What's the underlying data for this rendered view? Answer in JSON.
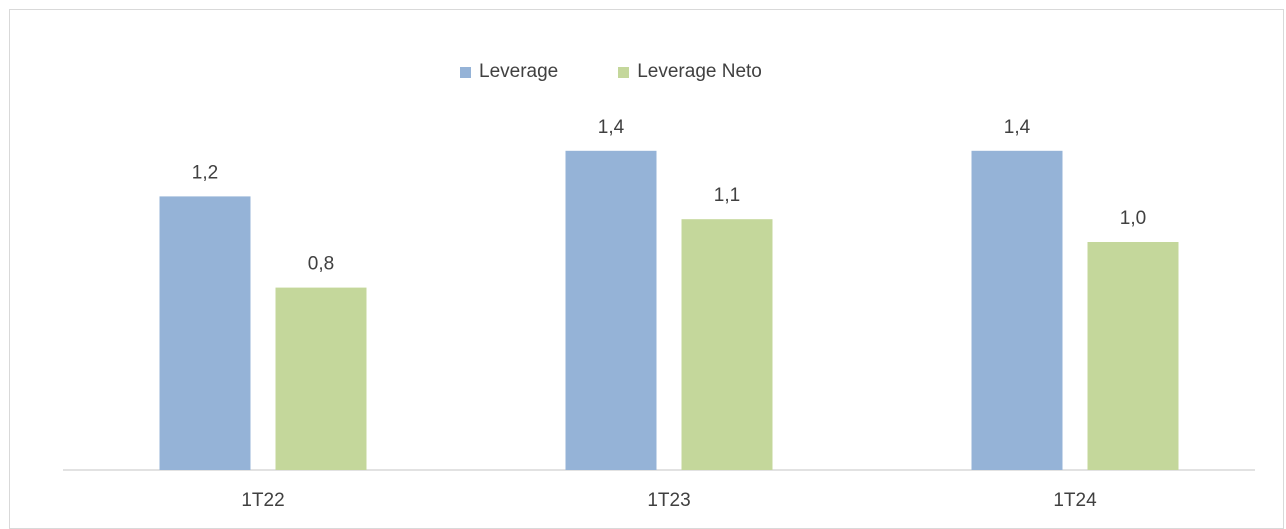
{
  "chart_data": {
    "type": "bar",
    "categories": [
      "1T22",
      "1T23",
      "1T24"
    ],
    "series": [
      {
        "name": "Leverage",
        "values": [
          1.2,
          1.4,
          1.4
        ],
        "labels": [
          "1,2",
          "1,4",
          "1,4"
        ],
        "color": "#95b3d7"
      },
      {
        "name": "Leverage Neto",
        "values": [
          0.8,
          1.1,
          1.0
        ],
        "labels": [
          "0,8",
          "1,1",
          "1,0"
        ],
        "color": "#c4d79b"
      }
    ],
    "title": "",
    "xlabel": "",
    "ylabel": "",
    "ylim": [
      0,
      1.6
    ],
    "grid": false,
    "legend_position": "top-center",
    "axis_color": "#d9d9d9",
    "text_color": "#404040"
  }
}
